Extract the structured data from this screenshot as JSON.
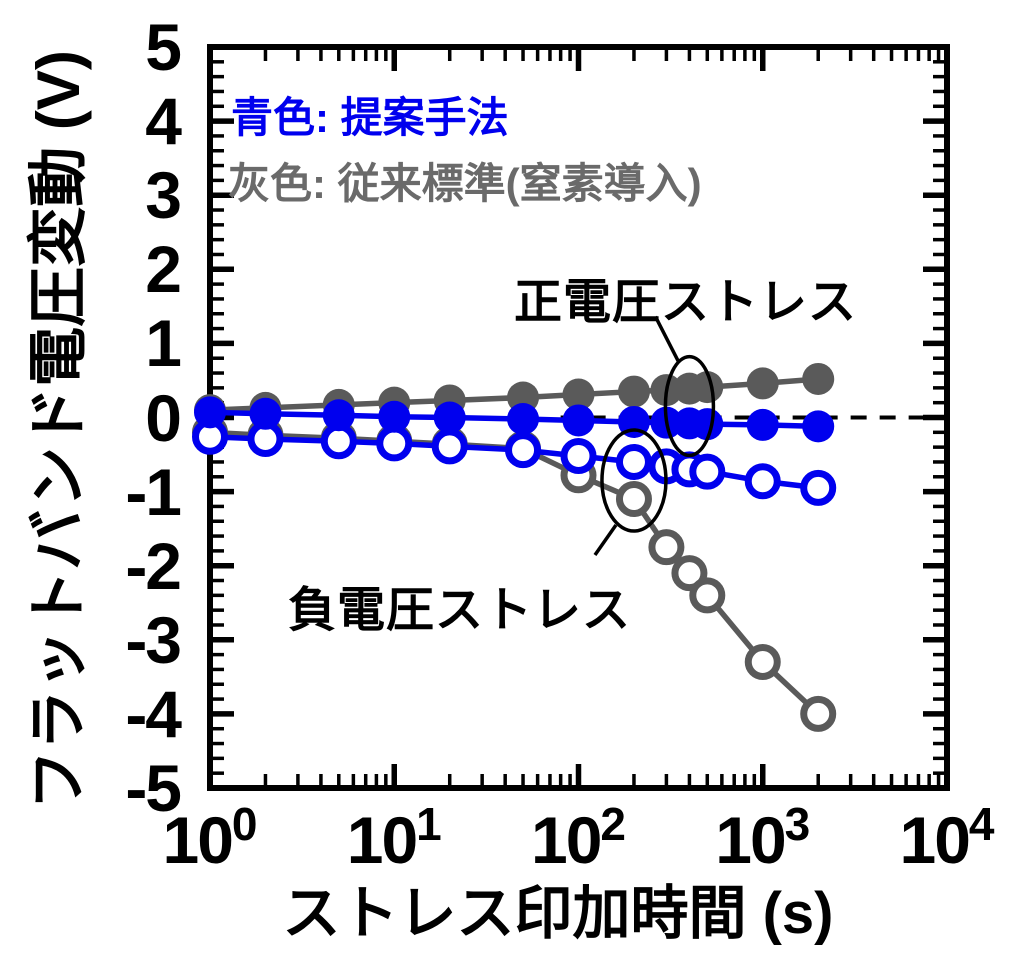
{
  "chart_data": {
    "type": "line",
    "title": "",
    "xlabel": "ストレス印加時間 (s)",
    "ylabel": "フラットバンド電圧変動 (V)",
    "x_scale": "log",
    "xlim": [
      1,
      10000
    ],
    "ylim": [
      -5,
      5
    ],
    "grid": false,
    "x_tick_base": "10",
    "x_tick_exponents": [
      0,
      1,
      2,
      3,
      4
    ],
    "y_tick_values": [
      5,
      4,
      3,
      2,
      1,
      0,
      -1,
      -2,
      -3,
      -4,
      -5
    ],
    "y_minor_step": 0.2,
    "x": [
      1,
      2,
      5,
      10,
      20,
      50,
      100,
      200,
      300,
      400,
      500,
      1000,
      2000
    ],
    "series": [
      {
        "name": "conventional-negative-stress",
        "label": "従来標準(窒素導入) 負電圧ストレス",
        "color": "#5a5a5a",
        "marker": "open",
        "values": [
          -0.2,
          -0.24,
          -0.28,
          -0.32,
          -0.36,
          -0.42,
          -0.78,
          -1.1,
          -1.75,
          -2.1,
          -2.4,
          -3.3,
          -4.0
        ]
      },
      {
        "name": "proposed-negative-stress",
        "label": "提案手法 負電圧ストレス",
        "color": "#0000ee",
        "marker": "open",
        "values": [
          -0.26,
          -0.29,
          -0.32,
          -0.35,
          -0.39,
          -0.44,
          -0.52,
          -0.6,
          -0.66,
          -0.7,
          -0.73,
          -0.86,
          -0.95
        ]
      },
      {
        "name": "conventional-positive-stress",
        "label": "従来標準(窒素導入) 正電圧ストレス",
        "color": "#5a5a5a",
        "marker": "filled",
        "values": [
          0.1,
          0.13,
          0.17,
          0.2,
          0.23,
          0.27,
          0.31,
          0.35,
          0.37,
          0.39,
          0.41,
          0.46,
          0.52
        ]
      },
      {
        "name": "proposed-positive-stress",
        "label": "提案手法 正電圧ストレス",
        "color": "#0000ee",
        "marker": "filled",
        "values": [
          0.07,
          0.05,
          0.03,
          0.01,
          0.0,
          -0.02,
          -0.04,
          -0.06,
          -0.07,
          -0.08,
          -0.09,
          -0.1,
          -0.12
        ]
      }
    ],
    "zero_line": {
      "y": 0,
      "x_start": 80,
      "x_end": 10000,
      "style": "dashed",
      "color": "#000000"
    },
    "legend": {
      "position": "top-left-inside",
      "entries": [
        {
          "text": "青色: 提案手法",
          "color": "#0000ee"
        },
        {
          "text": "灰色: 従来標準(窒素導入)",
          "color": "#6a6a6a"
        }
      ]
    },
    "annotations": [
      {
        "text": "正電圧ストレス",
        "points_at_x": 400,
        "text_side": "above",
        "series_pair": [
          "conventional-positive-stress",
          "proposed-positive-stress"
        ]
      },
      {
        "text": "負電圧ストレス",
        "points_at_x": 200,
        "text_side": "below",
        "series_pair": [
          "proposed-negative-stress",
          "conventional-negative-stress"
        ]
      }
    ]
  }
}
